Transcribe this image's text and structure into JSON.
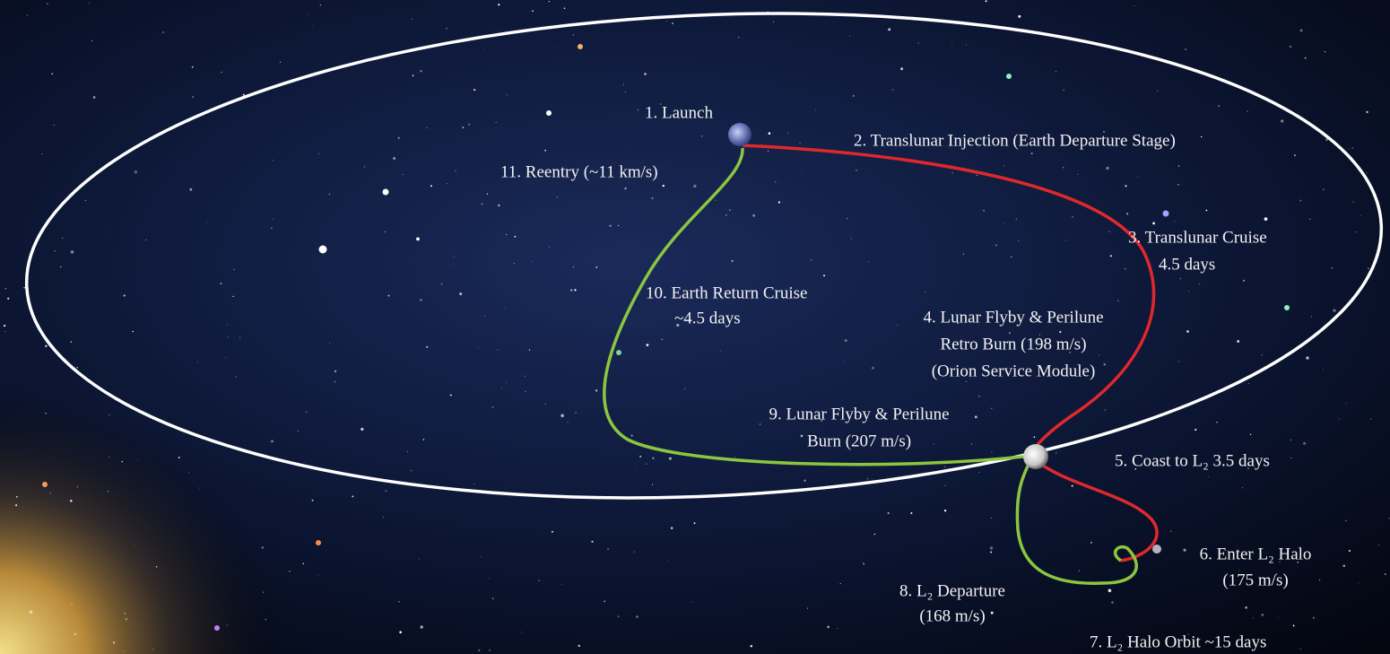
{
  "labels": [
    {
      "lines": [
        "1. Launch"
      ]
    },
    {
      "lines": [
        "2. Translunar Injection (Earth Departure Stage)"
      ]
    },
    {
      "lines": [
        "3. Translunar Cruise",
        "4.5 days"
      ]
    },
    {
      "lines": [
        "4. Lunar Flyby & Perilune",
        "Retro Burn (198 m/s)",
        "(Orion Service Module)"
      ]
    },
    {
      "lines": [
        "5. Coast to L₂ 3.5 days"
      ]
    },
    {
      "lines": [
        "6. Enter L₂ Halo",
        "(175 m/s)"
      ]
    },
    {
      "lines": [
        "7. L₂ Halo Orbit ~15 days"
      ]
    },
    {
      "lines": [
        "8. L₂ Departure",
        "(168 m/s)"
      ]
    },
    {
      "lines": [
        "9. Lunar Flyby & Perilune",
        "Burn (207 m/s)"
      ]
    },
    {
      "lines": [
        "10. Earth Return Cruise",
        "~4.5 days"
      ]
    },
    {
      "lines": [
        "11. Reentry (~11 km/s)"
      ]
    }
  ]
}
